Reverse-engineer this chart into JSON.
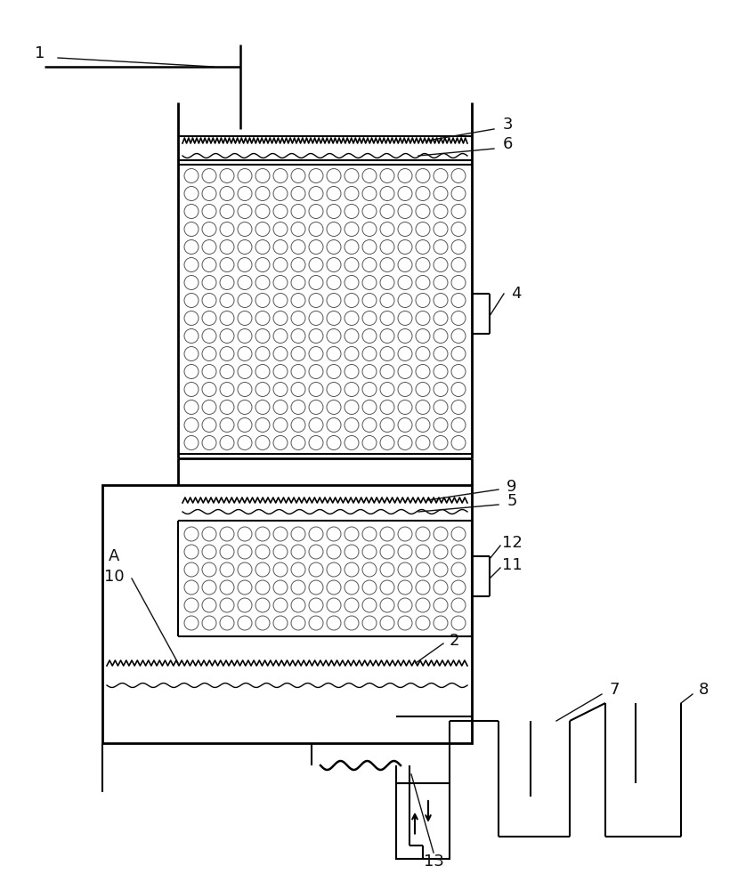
{
  "bg_color": "#ffffff",
  "line_color": "#000000",
  "fig_width": 8.47,
  "fig_height": 10.0,
  "dpi": 100
}
